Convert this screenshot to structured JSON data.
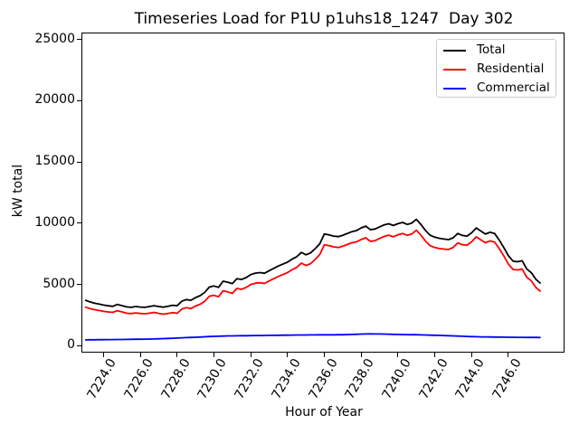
{
  "chart_data": {
    "type": "line",
    "title": "Timeseries Load for P1U p1uhs18_1247  Day 302",
    "xlabel": "Hour of Year",
    "ylabel": "kW total",
    "grid": false,
    "legend_position": "upper right",
    "axes": {
      "x_min": 7222.85,
      "x_max": 7249.0,
      "y_min": -500,
      "y_max": 25500,
      "x_ticks": [
        7224.0,
        7226.0,
        7228.0,
        7230.0,
        7232.0,
        7234.0,
        7236.0,
        7238.0,
        7240.0,
        7242.0,
        7244.0,
        7246.0
      ],
      "x_tick_labels": [
        "7224.0",
        "7226.0",
        "7228.0",
        "7230.0",
        "7232.0",
        "7234.0",
        "7236.0",
        "7238.0",
        "7240.0",
        "7242.0",
        "7244.0",
        "7246.0"
      ],
      "y_ticks": [
        0,
        5000,
        10000,
        15000,
        20000,
        25000
      ],
      "y_tick_labels": [
        "0",
        "5000",
        "10000",
        "15000",
        "20000",
        "25000"
      ]
    },
    "x": [
      7223.0,
      7223.25,
      7223.5,
      7223.75,
      7224.0,
      7224.25,
      7224.5,
      7224.75,
      7225.0,
      7225.25,
      7225.5,
      7225.75,
      7226.0,
      7226.25,
      7226.5,
      7226.75,
      7227.0,
      7227.25,
      7227.5,
      7227.75,
      7228.0,
      7228.25,
      7228.5,
      7228.75,
      7229.0,
      7229.25,
      7229.5,
      7229.75,
      7230.0,
      7230.25,
      7230.5,
      7230.75,
      7231.0,
      7231.25,
      7231.5,
      7231.75,
      7232.0,
      7232.25,
      7232.5,
      7232.75,
      7233.0,
      7233.25,
      7233.5,
      7233.75,
      7234.0,
      7234.25,
      7234.5,
      7234.75,
      7235.0,
      7235.25,
      7235.5,
      7235.75,
      7236.0,
      7236.25,
      7236.5,
      7236.75,
      7237.0,
      7237.25,
      7237.5,
      7237.75,
      7238.0,
      7238.25,
      7238.5,
      7238.75,
      7239.0,
      7239.25,
      7239.5,
      7239.75,
      7240.0,
      7240.25,
      7240.5,
      7240.75,
      7241.0,
      7241.25,
      7241.5,
      7241.75,
      7242.0,
      7242.25,
      7242.5,
      7242.75,
      7243.0,
      7243.25,
      7243.5,
      7243.75,
      7244.0,
      7244.25,
      7244.5,
      7244.75,
      7245.0,
      7245.25,
      7245.5,
      7245.75,
      7246.0,
      7246.25,
      7246.5,
      7246.75,
      7247.0,
      7247.25,
      7247.5,
      7247.75
    ],
    "series": [
      {
        "name": "Total",
        "color": "#000000",
        "values": [
          3720,
          3580,
          3470,
          3400,
          3310,
          3250,
          3210,
          3360,
          3270,
          3160,
          3130,
          3190,
          3150,
          3130,
          3190,
          3260,
          3190,
          3140,
          3210,
          3300,
          3260,
          3620,
          3760,
          3700,
          3920,
          4080,
          4350,
          4780,
          4870,
          4760,
          5260,
          5180,
          5060,
          5470,
          5400,
          5560,
          5800,
          5920,
          5960,
          5910,
          6120,
          6310,
          6500,
          6660,
          6820,
          7060,
          7260,
          7610,
          7420,
          7570,
          7920,
          8310,
          9120,
          9050,
          8950,
          8900,
          9010,
          9160,
          9310,
          9400,
          9610,
          9760,
          9470,
          9520,
          9700,
          9860,
          9950,
          9810,
          9960,
          10060,
          9900,
          10010,
          10310,
          9890,
          9400,
          9010,
          8860,
          8760,
          8700,
          8660,
          8810,
          9160,
          9000,
          8950,
          9210,
          9610,
          9360,
          9110,
          9260,
          9160,
          8620,
          8010,
          7340,
          6900,
          6850,
          6930,
          6250,
          5950,
          5400,
          5080
        ]
      },
      {
        "name": "Residential",
        "color": "#ff0000",
        "values": [
          3150,
          3030,
          2940,
          2870,
          2800,
          2750,
          2710,
          2850,
          2760,
          2650,
          2615,
          2670,
          2625,
          2600,
          2650,
          2710,
          2630,
          2565,
          2620,
          2695,
          2640,
          2980,
          3100,
          3025,
          3230,
          3375,
          3625,
          4035,
          4110,
          3990,
          4480,
          4390,
          4265,
          4670,
          4595,
          4750,
          4985,
          5100,
          5135,
          5080,
          5285,
          5470,
          5655,
          5810,
          5965,
          6200,
          6395,
          6742,
          6550,
          6698,
          7045,
          7432,
          8240,
          8168,
          8066,
          8014,
          8120,
          8260,
          8400,
          8475,
          8670,
          8810,
          8515,
          8570,
          8755,
          8920,
          9020,
          8890,
          9050,
          9160,
          9005,
          9120,
          9425,
          9015,
          8535,
          8155,
          8015,
          7925,
          7880,
          7855,
          8020,
          8385,
          8240,
          8205,
          8475,
          8885,
          8645,
          8400,
          8555,
          8460,
          7925,
          7320,
          6655,
          6220,
          6175,
          6258,
          5580,
          5282,
          4735,
          4420
        ]
      },
      {
        "name": "Commercial",
        "color": "#0000ff",
        "values": [
          470,
          473,
          476,
          479,
          483,
          487,
          491,
          495,
          500,
          505,
          510,
          516,
          522,
          528,
          535,
          545,
          555,
          570,
          585,
          600,
          615,
          635,
          655,
          670,
          685,
          700,
          720,
          740,
          755,
          765,
          780,
          790,
          795,
          800,
          805,
          810,
          815,
          820,
          825,
          830,
          835,
          840,
          845,
          850,
          855,
          860,
          865,
          868,
          870,
          872,
          875,
          878,
          880,
          882,
          884,
          886,
          890,
          900,
          910,
          925,
          940,
          950,
          955,
          950,
          945,
          940,
          930,
          920,
          910,
          900,
          895,
          890,
          885,
          875,
          865,
          855,
          845,
          835,
          820,
          805,
          790,
          775,
          760,
          745,
          735,
          725,
          715,
          710,
          705,
          700,
          695,
          690,
          685,
          680,
          675,
          672,
          670,
          668,
          665,
          660
        ]
      }
    ]
  }
}
